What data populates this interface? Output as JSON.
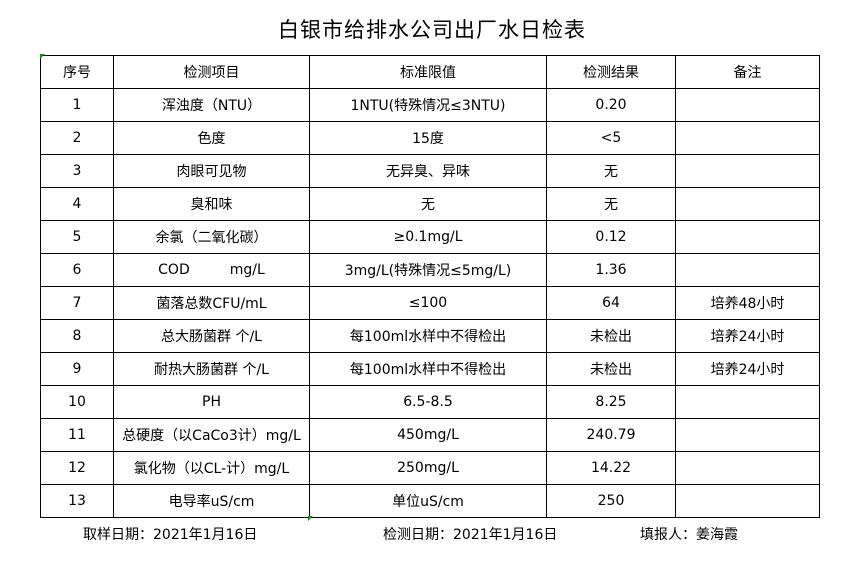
{
  "title": "白银市给排水公司出厂水日检表",
  "columns": [
    "序号",
    "检测项目",
    "标准限值",
    "检测结果",
    "备注"
  ],
  "rows": [
    [
      "1",
      "浑浊度（NTU）",
      "1NTU(特殊情况≤3NTU)",
      "0.20",
      ""
    ],
    [
      "2",
      "色度",
      "15度",
      "<5",
      ""
    ],
    [
      "3",
      "肉眼可见物",
      "无异臭、异味",
      "无",
      ""
    ],
    [
      "4",
      "臭和味",
      "无",
      "无",
      ""
    ],
    [
      "5",
      "余氯（二氧化碳）",
      "≥0.1mg/L",
      "0.12",
      ""
    ],
    [
      "6",
      "COD         mg/L",
      "3mg/L(特殊情况≤5mg/L)",
      "1.36",
      ""
    ],
    [
      "7",
      "菌落总数CFU/mL",
      "≤100",
      "64",
      "培养48小时"
    ],
    [
      "8",
      "总大肠菌群 个/L",
      "每100ml水样中不得检出",
      "未检出",
      "培养24小时"
    ],
    [
      "9",
      "耐热大肠菌群 个/L",
      "每100ml水样中不得检出",
      "未检出",
      "培养24小时"
    ],
    [
      "10",
      "PH",
      "6.5-8.5",
      "8.25",
      ""
    ],
    [
      "11",
      "总硬度（以CaCo3计）mg/L",
      "450mg/L",
      "240.79",
      ""
    ],
    [
      "12",
      "氯化物（以CL-计）mg/L",
      "250mg/L",
      "14.22",
      ""
    ],
    [
      "13",
      "电导率uS/cm",
      "单位uS/cm",
      "250",
      ""
    ]
  ],
  "footer": {
    "sample_date": "取样日期：2021年1月16日",
    "test_date": "检测日期：2021年1月16日",
    "reporter": "填报人：姜海霞"
  }
}
